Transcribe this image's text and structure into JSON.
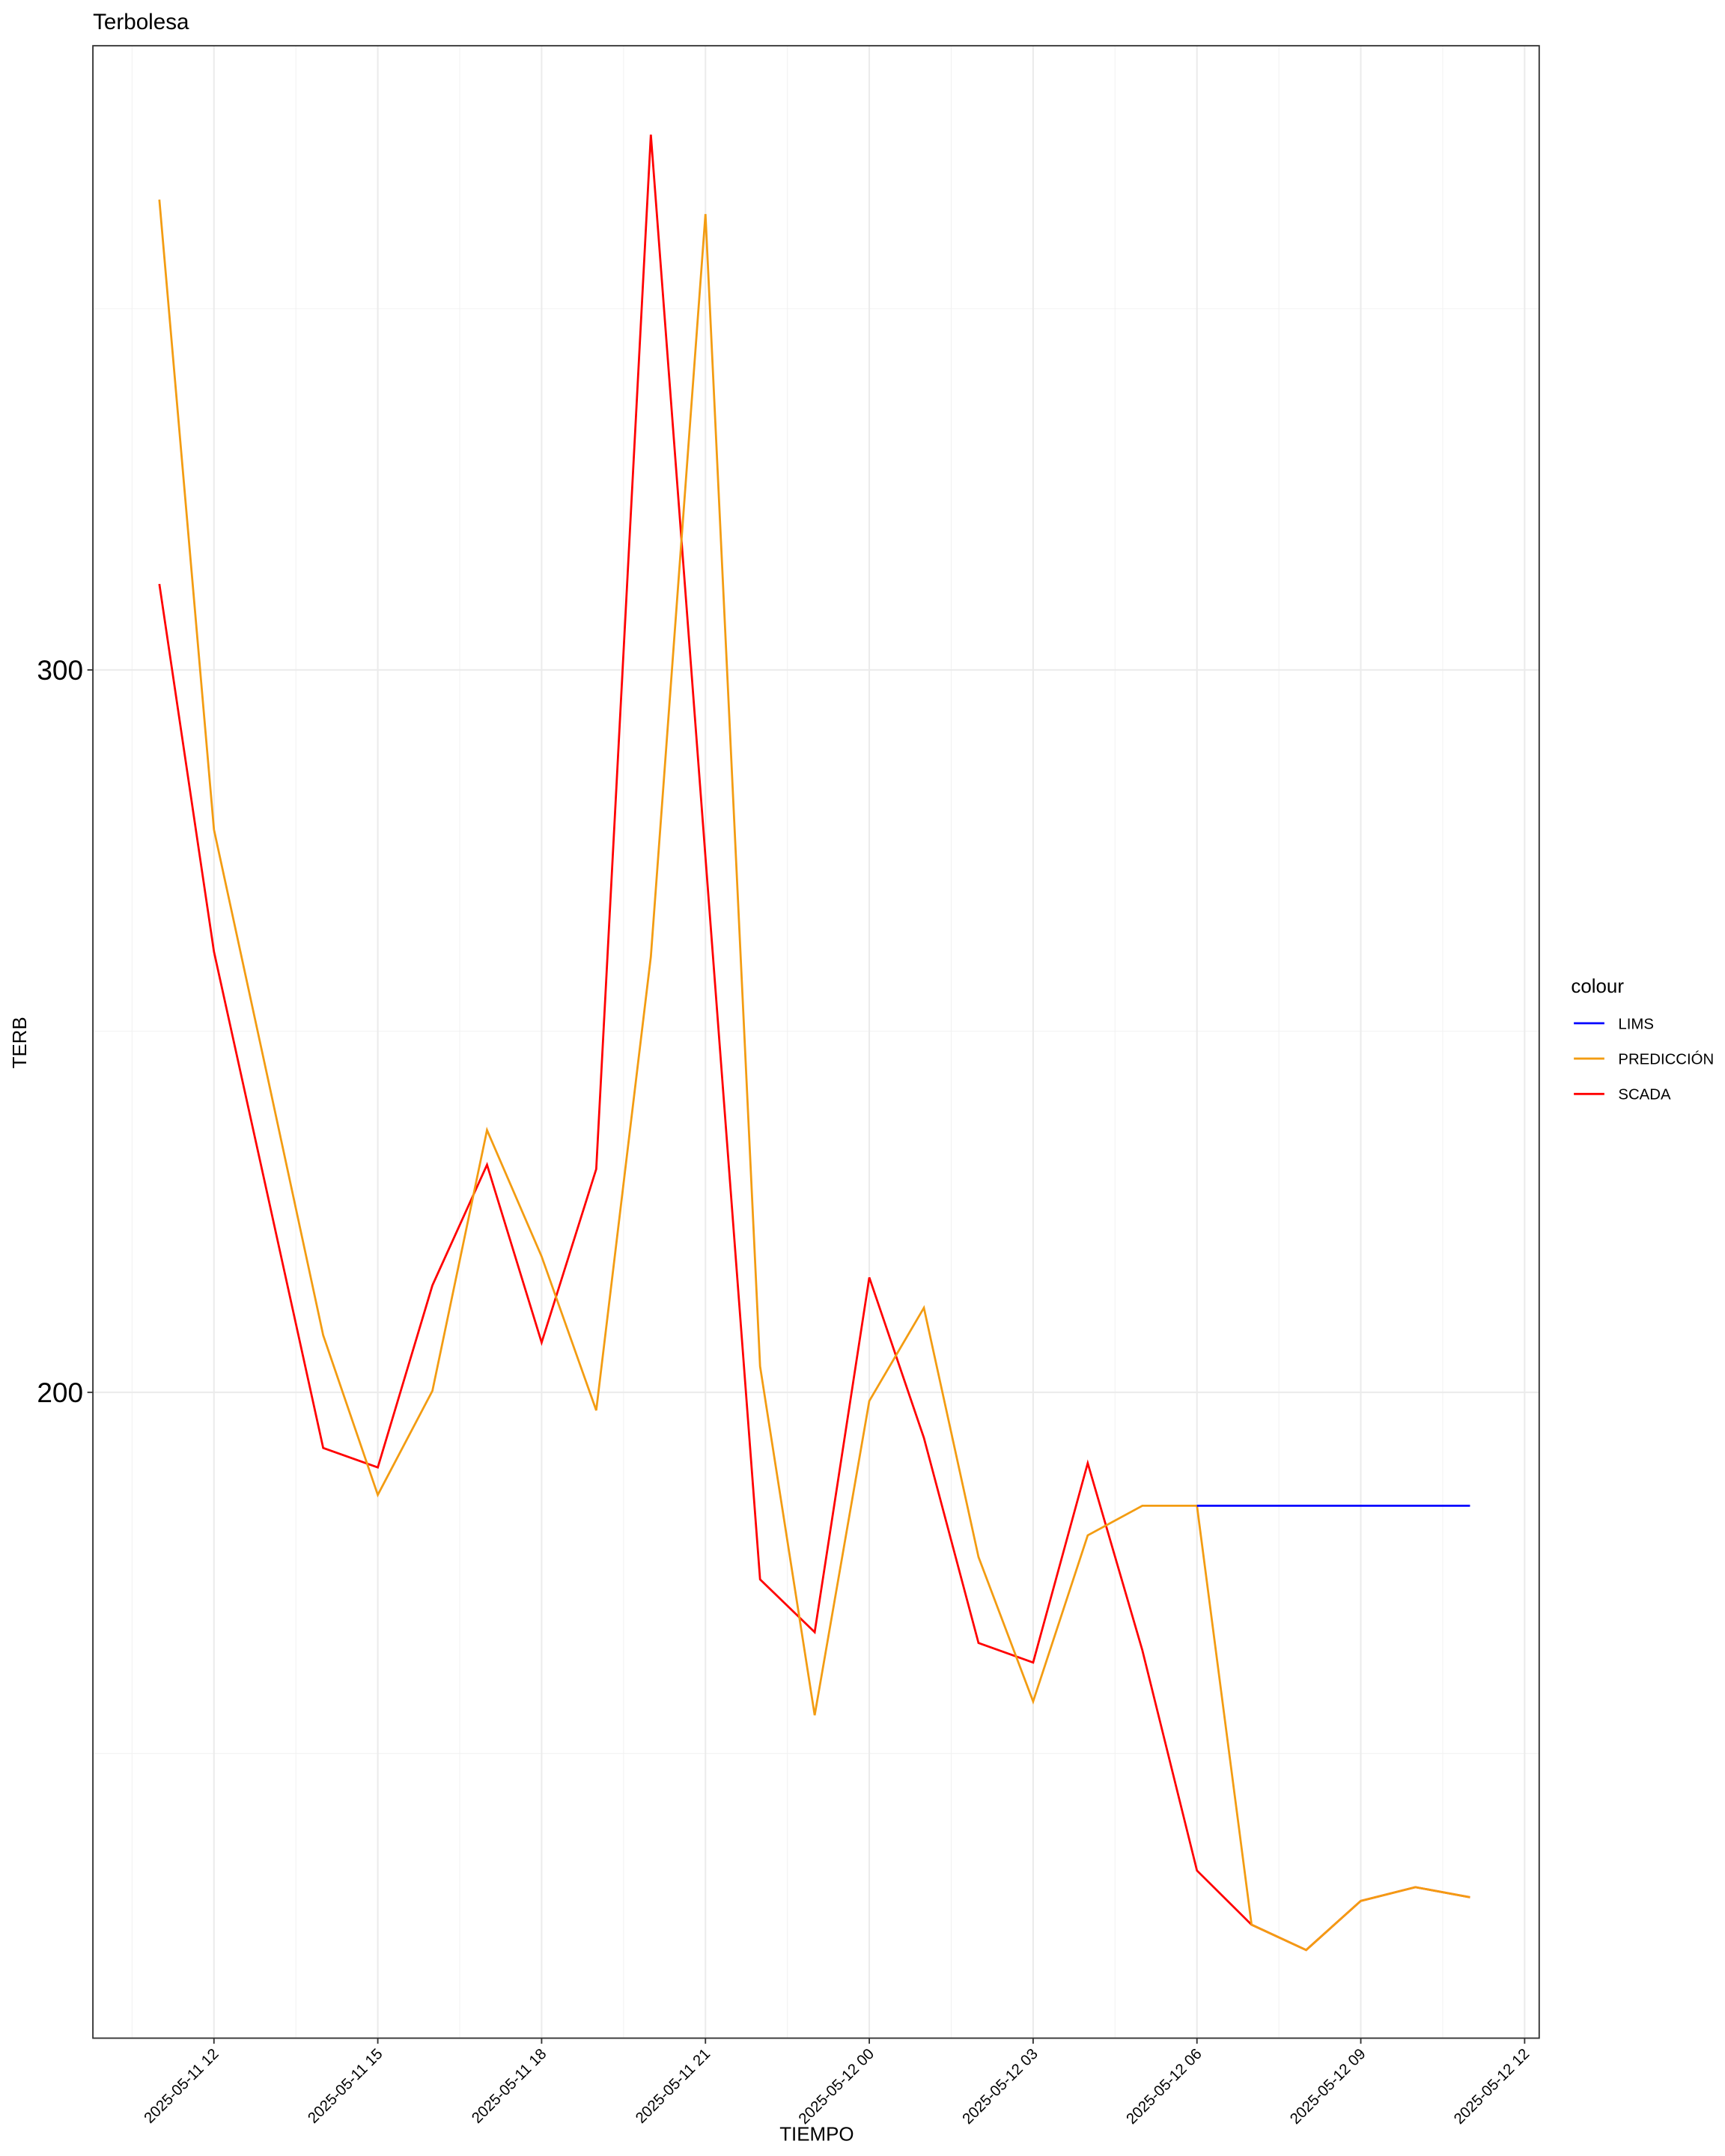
{
  "chart_data": {
    "type": "line",
    "title": "Terbolesa",
    "x_label": "TIEMPO",
    "y_label": "TERB",
    "legend_title": "colour",
    "legend_position": "right",
    "grid": true,
    "x": [
      "2025-05-11 11:00",
      "2025-05-11 12:00",
      "2025-05-11 13:00",
      "2025-05-11 14:00",
      "2025-05-11 15:00",
      "2025-05-11 16:00",
      "2025-05-11 17:00",
      "2025-05-11 18:00",
      "2025-05-11 19:00",
      "2025-05-11 20:00",
      "2025-05-11 21:00",
      "2025-05-11 22:00",
      "2025-05-11 23:00",
      "2025-05-12 00:00",
      "2025-05-12 01:00",
      "2025-05-12 02:00",
      "2025-05-12 03:00",
      "2025-05-12 04:00",
      "2025-05-12 05:00",
      "2025-05-12 06:00",
      "2025-05-12 07:00",
      "2025-05-12 08:00",
      "2025-05-12 09:00",
      "2025-05-12 10:00",
      "2025-05-12 11:00"
    ],
    "series": [
      {
        "name": "LIMS",
        "color": "#0000ff",
        "values": [
          null,
          null,
          null,
          null,
          null,
          null,
          null,
          null,
          null,
          null,
          null,
          null,
          null,
          null,
          null,
          null,
          null,
          null,
          null,
          184.3,
          184.3,
          184.3,
          184.3,
          184.3,
          184.3
        ]
      },
      {
        "name": "PREDICCIÓN",
        "color": "#f39c12",
        "values": [
          365.1,
          277.9,
          243.0,
          207.9,
          185.8,
          200.2,
          236.3,
          218.8,
          197.5,
          260.3,
          363.1,
          203.6,
          155.3,
          198.8,
          211.7,
          177.2,
          157.2,
          180.2,
          184.3,
          184.3,
          126.3,
          122.8,
          129.6,
          131.5,
          130.1
        ]
      },
      {
        "name": "SCADA",
        "color": "#ff0000",
        "values": [
          311.9,
          261.0,
          226.7,
          192.3,
          189.6,
          214.8,
          231.5,
          206.9,
          230.9,
          374.1,
          274.1,
          174.1,
          166.8,
          215.9,
          193.7,
          165.3,
          162.6,
          190.2,
          164.3,
          133.8,
          126.3,
          122.8,
          129.6,
          131.5,
          130.1
        ]
      }
    ],
    "xlim": [
      "2025-05-11 09:47",
      "2025-05-12 12:16"
    ],
    "xticks": [
      {
        "value": "2025-05-11 12:00",
        "label": "2025-05-11 12"
      },
      {
        "value": "2025-05-11 15:00",
        "label": "2025-05-11 15"
      },
      {
        "value": "2025-05-11 18:00",
        "label": "2025-05-11 18"
      },
      {
        "value": "2025-05-11 21:00",
        "label": "2025-05-11 21"
      },
      {
        "value": "2025-05-12 00:00",
        "label": "2025-05-12 00"
      },
      {
        "value": "2025-05-12 03:00",
        "label": "2025-05-12 03"
      },
      {
        "value": "2025-05-12 06:00",
        "label": "2025-05-12 06"
      },
      {
        "value": "2025-05-12 09:00",
        "label": "2025-05-12 09"
      },
      {
        "value": "2025-05-12 12:00",
        "label": "2025-05-12 12"
      }
    ],
    "xminor": [
      "2025-05-11 10:30",
      "2025-05-11 13:30",
      "2025-05-11 16:30",
      "2025-05-11 19:30",
      "2025-05-11 22:30",
      "2025-05-12 01:30",
      "2025-05-12 04:30",
      "2025-05-12 07:30",
      "2025-05-12 10:30"
    ],
    "ylim": [
      110.6,
      386.4
    ],
    "yticks": [
      200,
      300
    ],
    "yminor": [
      150,
      250,
      350
    ]
  }
}
